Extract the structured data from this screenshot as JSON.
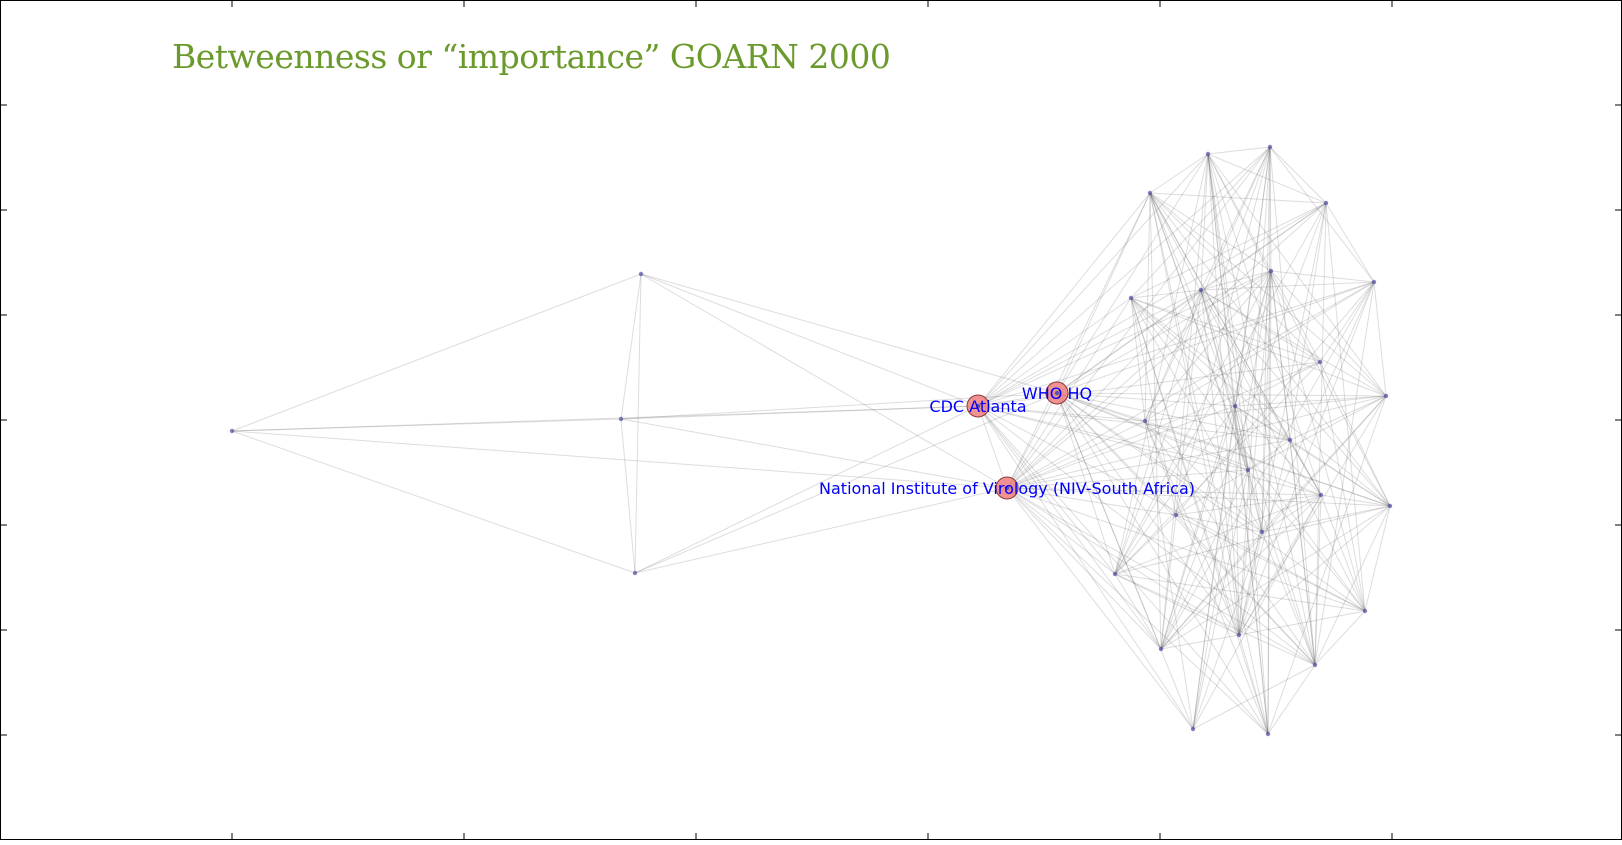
{
  "slide": {
    "title": "Betweenness or “importance” GOARN 2000",
    "title_color": "#6b9a2c"
  },
  "network": {
    "label_color": "#0000ff",
    "highlight_fill": "#f08080",
    "node_color": "#5555aa",
    "edge_color": "#555555",
    "highlighted_nodes": [
      {
        "id": "WHO",
        "label": "WHO HQ"
      },
      {
        "id": "CDC",
        "label": "CDC Atlanta"
      },
      {
        "id": "NIV",
        "label": "National Institute of Virology (NIV-South Africa)"
      }
    ],
    "peripheral_nodes": [
      "P_far",
      "P_top",
      "P_mid",
      "P_bot"
    ],
    "cluster_nodes": [
      "C1",
      "C2",
      "C3",
      "C4",
      "C5",
      "C6",
      "C7",
      "C8",
      "C9",
      "C10",
      "C11",
      "C12",
      "C13",
      "C14",
      "C15",
      "C16",
      "C17",
      "C18",
      "C19",
      "C20",
      "C21",
      "C22",
      "C23",
      "C24",
      "C25"
    ],
    "edges": [
      [
        "P_far",
        "P_top"
      ],
      [
        "P_far",
        "P_mid"
      ],
      [
        "P_far",
        "P_bot"
      ],
      [
        "P_far",
        "CDC"
      ],
      [
        "P_far",
        "NIV"
      ],
      [
        "P_top",
        "P_mid"
      ],
      [
        "P_top",
        "P_bot"
      ],
      [
        "P_top",
        "WHO"
      ],
      [
        "P_top",
        "CDC"
      ],
      [
        "P_top",
        "NIV"
      ],
      [
        "P_mid",
        "CDC"
      ],
      [
        "P_mid",
        "WHO"
      ],
      [
        "P_mid",
        "NIV"
      ],
      [
        "P_mid",
        "P_bot"
      ],
      [
        "P_bot",
        "CDC"
      ],
      [
        "P_bot",
        "WHO"
      ],
      [
        "P_bot",
        "NIV"
      ],
      [
        "WHO",
        "CDC"
      ],
      [
        "WHO",
        "NIV"
      ],
      [
        "CDC",
        "NIV"
      ]
    ]
  }
}
